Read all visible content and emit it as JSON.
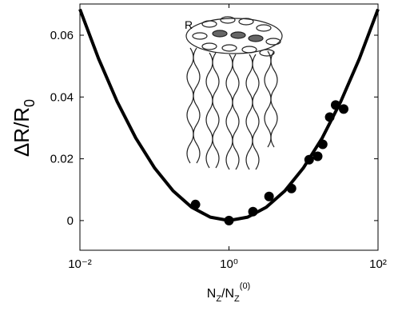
{
  "chart_data": {
    "type": "scatter",
    "xlabel": [
      "N",
      "Z",
      "/N",
      "Z",
      "(0)"
    ],
    "ylabel": [
      "ΔR/R",
      "0"
    ],
    "annotations": [
      "R"
    ],
    "xscale": "log",
    "xlim": [
      0.01,
      100
    ],
    "ylim": [
      -0.0096,
      0.0701
    ],
    "xticks": [
      {
        "value": 0.01,
        "label": "10⁻²"
      },
      {
        "value": 1,
        "label": "10⁰"
      },
      {
        "value": 100,
        "label": "10²"
      }
    ],
    "yticks": [
      0,
      0.02,
      0.04,
      0.06
    ],
    "series": [
      {
        "type": "line",
        "color": "#000000",
        "x": [
          0.01,
          0.0178,
          0.0316,
          0.0562,
          0.1,
          0.178,
          0.316,
          0.562,
          1,
          1.78,
          3.16,
          5.62,
          10,
          17.8,
          31.6,
          56.2,
          100
        ],
        "values": [
          0.0684,
          0.0524,
          0.0385,
          0.0267,
          0.0171,
          0.0096,
          0.0043,
          0.0011,
          0,
          0.0011,
          0.0043,
          0.0096,
          0.0171,
          0.0267,
          0.0385,
          0.0524,
          0.0684
        ]
      },
      {
        "type": "scatter",
        "color": "#000000",
        "x": [
          0.355,
          1.0,
          2.1,
          3.45,
          6.9,
          11.9,
          15.5,
          18.1,
          22.5,
          27,
          34.6
        ],
        "values": [
          0.0052,
          0,
          0.0029,
          0.0078,
          0.0104,
          0.0197,
          0.0208,
          0.0247,
          0.0335,
          0.0374,
          0.0361
        ]
      }
    ]
  }
}
